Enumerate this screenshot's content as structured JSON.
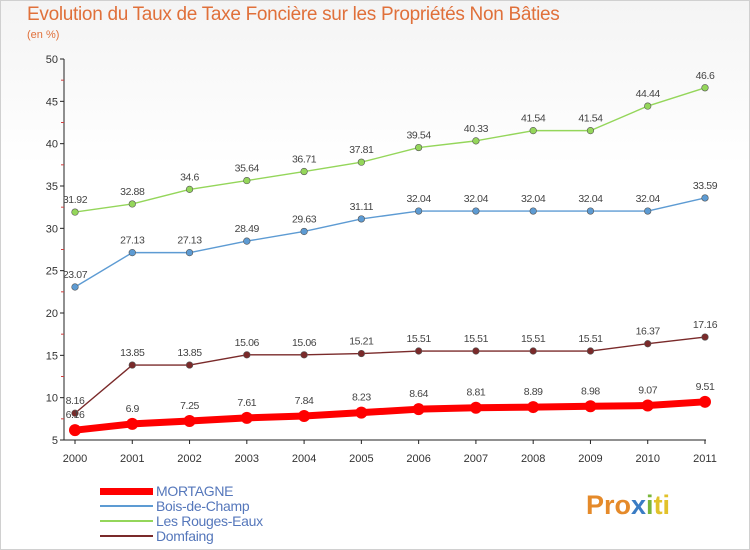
{
  "header": {
    "title": "Evolution du Taux de Taxe Foncière sur les Propriétés Non Bâties",
    "subtitle": "(en %)"
  },
  "logo": {
    "p1": "Pro",
    "p2": "x",
    "p3": "i",
    "p4": "ti"
  },
  "chart_data": {
    "type": "line",
    "title": "Evolution du Taux de Taxe Foncière sur les Propriétés Non Bâties",
    "ylabel": "(en %)",
    "xlabel": "",
    "x": [
      "2000",
      "2001",
      "2002",
      "2003",
      "2004",
      "2005",
      "2006",
      "2007",
      "2008",
      "2009",
      "2010",
      "2011"
    ],
    "ylim": [
      5,
      50
    ],
    "yticks": [
      "5",
      "10",
      "15",
      "20",
      "25",
      "30",
      "35",
      "40",
      "45",
      "50"
    ],
    "grid": false,
    "legend_position": "bottom-left",
    "series": [
      {
        "name": "MORTAGNE",
        "color": "#ff0000",
        "values": [
          6.16,
          6.9,
          7.25,
          7.61,
          7.84,
          8.23,
          8.64,
          8.81,
          8.89,
          8.98,
          9.07,
          9.51
        ],
        "labels": [
          "6.16",
          "6.9",
          "7.25",
          "7.61",
          "7.84",
          "8.23",
          "8.64",
          "8.81",
          "8.89",
          "8.98",
          "9.07",
          "9.51"
        ]
      },
      {
        "name": "Bois-de-Champ",
        "color": "#5d9bd3",
        "values": [
          23.07,
          27.13,
          27.13,
          28.49,
          29.63,
          31.11,
          32.04,
          32.04,
          32.04,
          32.04,
          32.04,
          33.59
        ],
        "labels": [
          "23.07",
          "27.13",
          "27.13",
          "28.49",
          "29.63",
          "31.11",
          "32.04",
          "32.04",
          "32.04",
          "32.04",
          "32.04",
          "33.59"
        ]
      },
      {
        "name": "Les Rouges-Eaux",
        "color": "#94d65a",
        "values": [
          31.92,
          32.88,
          34.6,
          35.64,
          36.71,
          37.81,
          39.54,
          40.33,
          41.54,
          41.54,
          44.44,
          46.6
        ],
        "labels": [
          "31.92",
          "32.88",
          "34.6",
          "35.64",
          "36.71",
          "37.81",
          "39.54",
          "40.33",
          "41.54",
          "41.54",
          "44.44",
          "46.6"
        ]
      },
      {
        "name": "Domfaing",
        "color": "#7a2a2a",
        "values": [
          8.16,
          13.85,
          13.85,
          15.06,
          15.06,
          15.21,
          15.51,
          15.51,
          15.51,
          15.51,
          16.37,
          17.16
        ],
        "labels": [
          "8.16",
          "13.85",
          "13.85",
          "15.06",
          "15.06",
          "15.21",
          "15.51",
          "15.51",
          "15.51",
          "15.51",
          "16.37",
          "17.16"
        ]
      }
    ]
  }
}
